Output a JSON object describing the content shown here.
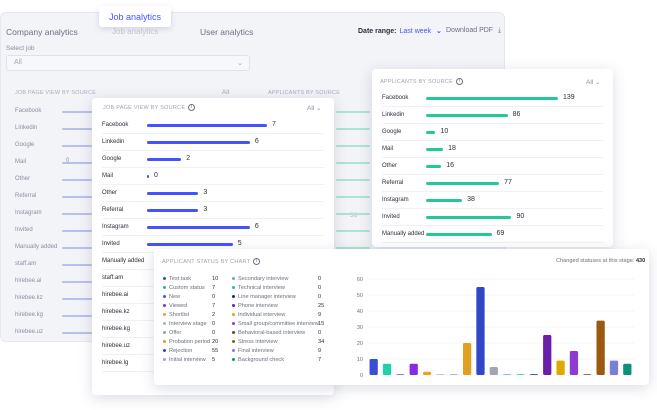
{
  "tabs": {
    "company": "Company analytics",
    "job": "Job analytics",
    "user": "User analytics",
    "active_pill": "Job analytics"
  },
  "header": {
    "date_range_label": "Date range:",
    "date_range_value": "Last week",
    "download": "Download PDF"
  },
  "select_job": {
    "label": "Select job",
    "value": "All"
  },
  "background": {
    "job_card_title": "JOB PAGE VIEW BY SOURCE",
    "app_card_title": "APPLICANTS BY SOURCE",
    "filter": "All",
    "visible_number": "38",
    "row_labels": [
      "Facebook",
      "Linkedin",
      "Google",
      "Mail",
      "Other",
      "Referral",
      "Instagram",
      "Invited",
      "Manually added",
      "staff.am",
      "hirebee.ai",
      "hirebee.kz",
      "hirebee.kg",
      "hirebee.uz"
    ],
    "mail_value": "0"
  },
  "job_views_card": {
    "title": "JOB PAGE VIEW BY SOURCE",
    "filter": "All",
    "bar_color": "#4353ff",
    "max": 7,
    "rows": [
      {
        "label": "Facebook",
        "value": 7
      },
      {
        "label": "Linkedin",
        "value": 6
      },
      {
        "label": "Google",
        "value": 2
      },
      {
        "label": "Mail",
        "value": 0
      },
      {
        "label": "Other",
        "value": 3
      },
      {
        "label": "Referral",
        "value": 3
      },
      {
        "label": "Instagram",
        "value": 6
      },
      {
        "label": "Invited",
        "value": 5
      },
      {
        "label": "Manually added",
        "value": null
      },
      {
        "label": "staff.am",
        "value": null
      },
      {
        "label": "hirebee.ai",
        "value": null
      },
      {
        "label": "hirebee.kz",
        "value": null
      },
      {
        "label": "hirebee.kg",
        "value": null
      },
      {
        "label": "hirebee.uz",
        "value": null
      },
      {
        "label": "hirebee.lg",
        "value": null
      }
    ]
  },
  "applicants_card": {
    "title": "APPLICANTS BY SOURCE",
    "filter": "All",
    "bar_color": "#23c99a",
    "max": 139,
    "rows": [
      {
        "label": "Facebook",
        "value": 139
      },
      {
        "label": "Linkedin",
        "value": 86
      },
      {
        "label": "Google",
        "value": 10
      },
      {
        "label": "Mail",
        "value": 18
      },
      {
        "label": "Other",
        "value": 16
      },
      {
        "label": "Referral",
        "value": 77
      },
      {
        "label": "Instagram",
        "value": 38
      },
      {
        "label": "Invited",
        "value": 90
      },
      {
        "label": "Manually added",
        "value": 69
      }
    ]
  },
  "status_card": {
    "title": "APPLICANT STATUS BY CHART",
    "changed_label": "Changed statuses at this stage:",
    "changed_value": "430",
    "legend_left": [
      {
        "label": "Test task",
        "value": "10",
        "color": "#3a4ed5"
      },
      {
        "label": "Custom status",
        "value": "7",
        "color": "#1fb89a"
      },
      {
        "label": "New",
        "value": "0",
        "color": "#4353ff"
      },
      {
        "label": "Viewed",
        "value": "7",
        "color": "#8a2be2"
      },
      {
        "label": "Shortlist",
        "value": "2",
        "color": "#f0a020"
      },
      {
        "label": "Interview stage",
        "value": "0",
        "color": "#b0b4c0"
      },
      {
        "label": "Offer",
        "value": "0",
        "color": "#9aa0ad"
      },
      {
        "label": "Probation period",
        "value": "20",
        "color": "#e0a020"
      },
      {
        "label": "Rejection",
        "value": "55",
        "color": "#3048c8"
      },
      {
        "label": "Initial interview",
        "value": "5",
        "color": "#a0a6b5"
      }
    ],
    "legend_right": [
      {
        "label": "Secondary interview",
        "value": "0",
        "color": "#6aa0e0"
      },
      {
        "label": "Technical interview",
        "value": "0",
        "color": "#2ec0a0"
      },
      {
        "label": "Line manager interview",
        "value": "0",
        "color": "#1a2a6c"
      },
      {
        "label": "Phone interview",
        "value": "25",
        "color": "#6b1fa8"
      },
      {
        "label": "Individual interview",
        "value": "9",
        "color": "#e0a800"
      },
      {
        "label": "Small group/committee interview",
        "value": "15",
        "color": "#8f3ad0"
      },
      {
        "label": "Behavioral-based interview",
        "value": "0",
        "color": "#5a4a3a"
      },
      {
        "label": "Stress interview",
        "value": "34",
        "color": "#9a5a10"
      },
      {
        "label": "Final interview",
        "value": "9",
        "color": "#7a7fd8"
      },
      {
        "label": "Background check",
        "value": "7",
        "color": "#0f8f7a"
      }
    ]
  },
  "chart_data": {
    "type": "bar",
    "categories": [
      "Test task",
      "Custom status",
      "New",
      "Viewed",
      "Shortlist",
      "Interview stage",
      "Offer",
      "Probation period",
      "Rejection",
      "Initial interview",
      "Secondary interview",
      "Technical interview",
      "Line manager interview",
      "Phone interview",
      "Individual interview",
      "Small group/committee interview",
      "Behavioral-based interview",
      "Stress interview",
      "Final interview",
      "Background check"
    ],
    "values": [
      10,
      7,
      0,
      7,
      2,
      0,
      0,
      20,
      55,
      5,
      0,
      0,
      0,
      25,
      9,
      15,
      0,
      34,
      9,
      7
    ],
    "colors": [
      "#3a4ed5",
      "#1fd1a8",
      "#4353ff",
      "#8a2be2",
      "#f0a020",
      "#b0b4c0",
      "#9aa0ad",
      "#e0a020",
      "#3048c8",
      "#a0a6b5",
      "#6aa0e0",
      "#2ec0a0",
      "#1a2a6c",
      "#6b1fa8",
      "#e0a800",
      "#8f3ad0",
      "#5a4a3a",
      "#9a5a10",
      "#7a7fd8",
      "#0f8f7a"
    ],
    "yticks": [
      "0",
      "10",
      "20",
      "30",
      "40",
      "50",
      "60"
    ],
    "ylim": [
      0,
      60
    ],
    "grid": true
  }
}
